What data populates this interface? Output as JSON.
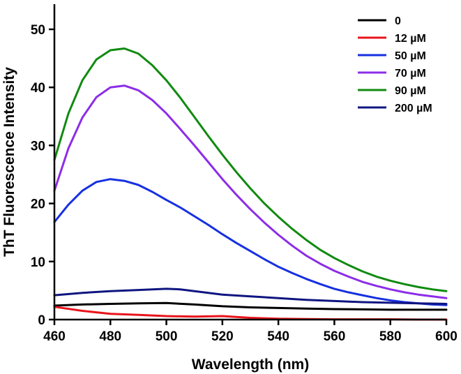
{
  "chart_data": {
    "type": "line",
    "title": "",
    "xlabel": "Wavelength (nm)",
    "ylabel": "ThT Fluorescence Intensity",
    "xlim": [
      460,
      600
    ],
    "ylim": [
      0,
      55
    ],
    "x_ticks": [
      460,
      480,
      500,
      520,
      540,
      560,
      580,
      600
    ],
    "y_ticks": [
      0,
      10,
      20,
      30,
      40,
      50
    ],
    "grid": false,
    "legend_position": "top-right",
    "series": [
      {
        "name": "0",
        "color": "#000000",
        "x": [
          460,
          470,
          480,
          490,
          500,
          510,
          520,
          530,
          540,
          550,
          560,
          570,
          580,
          590,
          600
        ],
        "values": [
          2.4,
          2.6,
          2.7,
          2.8,
          2.85,
          2.6,
          2.3,
          2.1,
          2.0,
          1.9,
          1.8,
          1.75,
          1.7,
          1.7,
          1.7
        ]
      },
      {
        "name": "12 µM",
        "color": "#e8141b",
        "x": [
          460,
          470,
          480,
          490,
          500,
          510,
          520,
          530,
          540,
          550,
          560,
          570,
          580,
          590,
          600
        ],
        "values": [
          2.2,
          1.5,
          1.0,
          0.8,
          0.6,
          0.5,
          0.6,
          0.3,
          0.15,
          0.1,
          0.05,
          0.05,
          0.05,
          0.0,
          0.0
        ]
      },
      {
        "name": "50 µM",
        "color": "#1730e0",
        "x": [
          460,
          465,
          470,
          475,
          480,
          485,
          490,
          495,
          500,
          505,
          510,
          515,
          520,
          525,
          530,
          535,
          540,
          545,
          550,
          555,
          560,
          565,
          570,
          575,
          580,
          585,
          590,
          595,
          600
        ],
        "values": [
          16.8,
          19.8,
          22.2,
          23.7,
          24.2,
          23.9,
          23.2,
          22.0,
          20.6,
          19.3,
          17.8,
          16.3,
          14.7,
          13.2,
          11.8,
          10.4,
          9.1,
          8.0,
          7.0,
          6.1,
          5.3,
          4.7,
          4.2,
          3.7,
          3.3,
          3.0,
          2.8,
          2.6,
          2.5
        ]
      },
      {
        "name": "70 µM",
        "color": "#8c2de8",
        "x": [
          460,
          465,
          470,
          475,
          480,
          485,
          490,
          495,
          500,
          505,
          510,
          515,
          520,
          525,
          530,
          535,
          540,
          545,
          550,
          555,
          560,
          565,
          570,
          575,
          580,
          585,
          590,
          595,
          600
        ],
        "values": [
          22.2,
          29.5,
          34.8,
          38.3,
          40.0,
          40.3,
          39.5,
          37.8,
          35.5,
          32.8,
          30.0,
          27.1,
          24.2,
          21.5,
          19.0,
          16.7,
          14.6,
          12.7,
          11.0,
          9.6,
          8.4,
          7.4,
          6.5,
          5.8,
          5.2,
          4.7,
          4.3,
          4.0,
          3.7
        ]
      },
      {
        "name": "90 µM",
        "color": "#108a10",
        "x": [
          460,
          465,
          470,
          475,
          480,
          485,
          490,
          495,
          500,
          505,
          510,
          515,
          520,
          525,
          530,
          535,
          540,
          545,
          550,
          555,
          560,
          565,
          570,
          575,
          580,
          585,
          590,
          595,
          600
        ],
        "values": [
          27.5,
          35.5,
          41.2,
          44.8,
          46.4,
          46.7,
          45.8,
          43.8,
          41.2,
          38.2,
          34.9,
          31.6,
          28.4,
          25.4,
          22.6,
          20.0,
          17.7,
          15.6,
          13.7,
          12.0,
          10.6,
          9.4,
          8.3,
          7.4,
          6.7,
          6.1,
          5.6,
          5.2,
          4.9
        ]
      },
      {
        "name": "200 µM",
        "color": "#0f1580",
        "x": [
          460,
          470,
          480,
          490,
          500,
          505,
          510,
          520,
          530,
          540,
          550,
          560,
          570,
          580,
          590,
          600
        ],
        "values": [
          4.2,
          4.6,
          4.9,
          5.1,
          5.3,
          5.2,
          4.9,
          4.3,
          4.0,
          3.7,
          3.4,
          3.2,
          3.0,
          2.9,
          2.8,
          2.7
        ]
      }
    ]
  }
}
